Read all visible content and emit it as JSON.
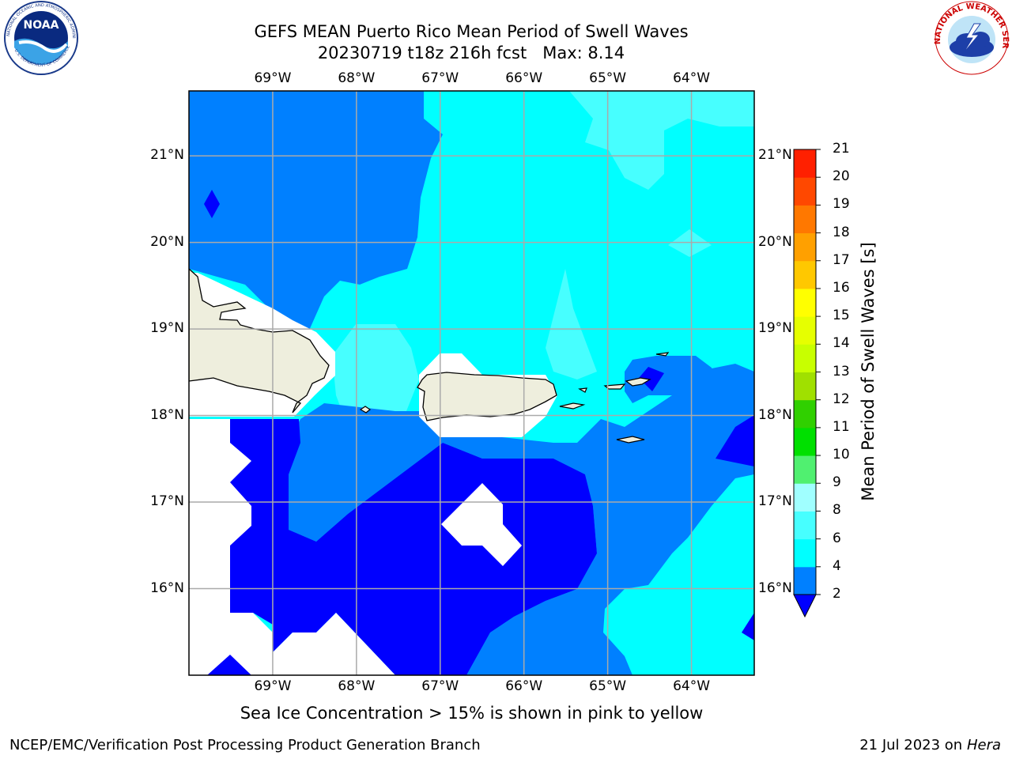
{
  "header": {
    "title_line1": "GEFS MEAN Puerto Rico Mean Period of Swell Waves",
    "title_line2": "20230719 t18z 216h fcst   Max: 8.14"
  },
  "logos": {
    "left": {
      "name": "NOAA",
      "ring_text": "NATIONAL OCEANIC AND ATMOSPHERIC ADMINISTRATION",
      "bottom_text": "U.S. DEPARTMENT OF COMMERCE"
    },
    "right": {
      "name": "NATIONAL WEATHER SERVICE"
    }
  },
  "map": {
    "lon_ticks": [
      "69°W",
      "68°W",
      "67°W",
      "66°W",
      "65°W",
      "64°W"
    ],
    "lat_ticks": [
      "21°N",
      "20°N",
      "19°N",
      "18°N",
      "17°N",
      "16°N"
    ],
    "lon_values": [
      -69,
      -68,
      -67,
      -66,
      -65,
      -64
    ],
    "lat_values": [
      21,
      20,
      19,
      18,
      17,
      16
    ],
    "lon_range": [
      -70.0,
      -63.25
    ],
    "lat_range": [
      15.0,
      21.75
    ],
    "land_color": "#eeeedd",
    "grid": true
  },
  "colorbar": {
    "label": "Mean Period of Swell Waves [s]",
    "ticks": [
      "21",
      "20",
      "19",
      "18",
      "17",
      "16",
      "15",
      "14",
      "13",
      "12",
      "11",
      "10",
      "9",
      "8",
      "6",
      "4",
      "2"
    ],
    "levels": [
      2,
      4,
      6,
      8,
      9,
      10,
      11,
      12,
      13,
      14,
      15,
      16,
      17,
      18,
      19,
      20,
      21
    ],
    "colors": [
      "#0000ff",
      "#0080ff",
      "#00ffff",
      "#47ffff",
      "#a0ffff",
      "#50f070",
      "#00e000",
      "#30d000",
      "#a0e000",
      "#c8ff00",
      "#e6ff00",
      "#ffff00",
      "#ffc800",
      "#ffa000",
      "#ff7800",
      "#ff4800",
      "#ff2000",
      "#ff0000"
    ]
  },
  "notes": {
    "sea_ice": "Sea Ice Concentration > 15% is shown in pink to yellow"
  },
  "footer": {
    "left": "NCEP/EMC/Verification Post Processing Product Generation Branch",
    "right_date": "21 Jul 2023 on ",
    "right_host": "Hera"
  }
}
